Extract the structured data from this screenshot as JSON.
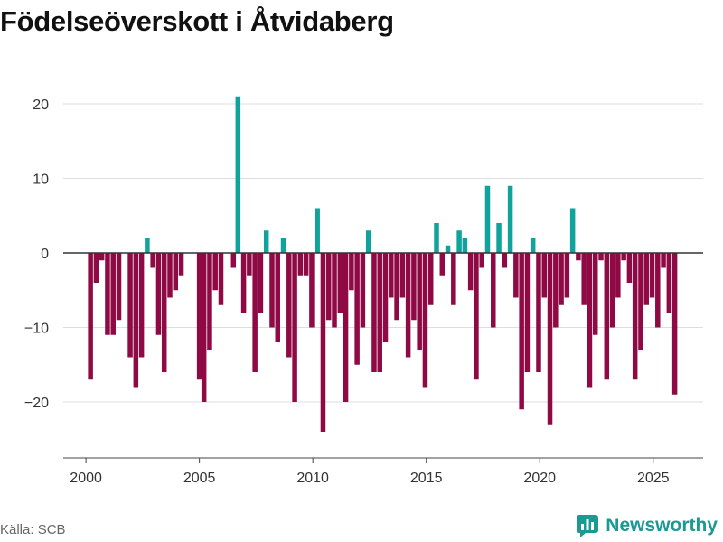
{
  "title": "Födelseöverskott i Åtvidaberg",
  "source": "Källa: SCB",
  "brand": {
    "name": "Newsworthy",
    "icon": "newsworthy-logo-icon"
  },
  "colors": {
    "positive": "#0fa39b",
    "negative": "#8f0a45",
    "grid": "#dddddd",
    "zero_line": "#333333",
    "brand": "#1a9a92"
  },
  "chart_data": {
    "type": "bar",
    "title": "Födelseöverskott i Åtvidaberg",
    "xlabel": "",
    "ylabel": "",
    "frequency": "monthly-ish (about 4 bars per year)",
    "x_ticks": [
      "2000",
      "2005",
      "2010",
      "2015",
      "2020",
      "2025"
    ],
    "y_ticks": [
      20,
      10,
      0,
      -10,
      -20
    ],
    "y_tick_labels": [
      "20",
      "10",
      "0",
      "−10",
      "−20"
    ],
    "xlim": [
      1999,
      2027.2
    ],
    "ylim": [
      -27,
      26
    ],
    "x": [
      2000.2,
      2000.45,
      2000.7,
      2000.95,
      2001.2,
      2001.45,
      2001.95,
      2002.2,
      2002.45,
      2002.7,
      2002.95,
      2003.2,
      2003.45,
      2003.7,
      2003.95,
      2004.2,
      2005.0,
      2005.2,
      2005.45,
      2005.7,
      2005.95,
      2006.5,
      2006.7,
      2006.95,
      2007.2,
      2007.45,
      2007.7,
      2007.95,
      2008.2,
      2008.45,
      2008.7,
      2008.95,
      2009.2,
      2009.45,
      2009.7,
      2009.95,
      2010.2,
      2010.45,
      2010.7,
      2010.95,
      2011.2,
      2011.45,
      2011.7,
      2011.95,
      2012.2,
      2012.45,
      2012.7,
      2012.95,
      2013.2,
      2013.45,
      2013.7,
      2013.95,
      2014.2,
      2014.45,
      2014.7,
      2014.95,
      2015.2,
      2015.45,
      2015.7,
      2015.95,
      2016.2,
      2016.45,
      2016.7,
      2016.95,
      2017.2,
      2017.45,
      2017.7,
      2017.95,
      2018.2,
      2018.45,
      2018.7,
      2018.95,
      2019.2,
      2019.45,
      2019.7,
      2019.95,
      2020.2,
      2020.45,
      2020.7,
      2020.95,
      2021.2,
      2021.45,
      2021.7,
      2021.95,
      2022.2,
      2022.45,
      2022.7,
      2022.95,
      2023.2,
      2023.45,
      2023.7,
      2023.95,
      2024.2,
      2024.45,
      2024.7,
      2024.95,
      2025.2,
      2025.45,
      2025.7,
      2025.95
    ],
    "values": [
      -17,
      -4,
      -1,
      -11,
      -11,
      -9,
      -14,
      -18,
      -14,
      2,
      -2,
      -11,
      -16,
      -6,
      -5,
      -3,
      -17,
      -20,
      -13,
      -5,
      -7,
      -2,
      21,
      -8,
      -3,
      -16,
      -8,
      3,
      -10,
      -12,
      2,
      -14,
      -20,
      -3,
      -3,
      -10,
      6,
      -24,
      -9,
      -10,
      -8,
      -20,
      -5,
      -15,
      -10,
      3,
      -16,
      -16,
      -12,
      -6,
      -9,
      -6,
      -14,
      -9,
      -13,
      -18,
      -7,
      4,
      -3,
      1,
      -7,
      3,
      2,
      -5,
      -17,
      -2,
      9,
      -10,
      4,
      -2,
      9,
      -6,
      -21,
      -16,
      2,
      -16,
      -6,
      -23,
      -10,
      -7,
      -6,
      6,
      -1,
      -7,
      -18,
      -11,
      -1,
      -17,
      -10,
      -6,
      -1,
      -4,
      -17,
      -13,
      -7,
      -6,
      -10,
      -2,
      -8,
      -19
    ]
  }
}
